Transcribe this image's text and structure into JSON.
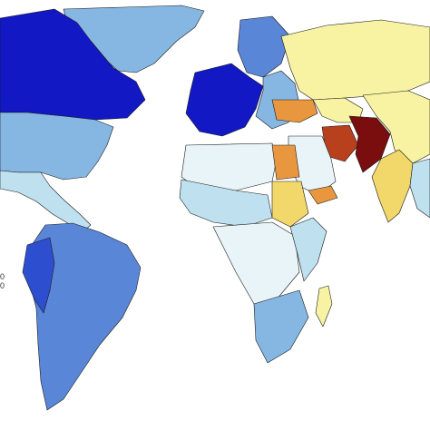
{
  "map": {
    "palette": {
      "very_low": "#e8f4f8",
      "low": "#bfe0ee",
      "low_mid": "#86b7e2",
      "mid_blue": "#5a86d8",
      "high_blue": "#2d4fcf",
      "very_high_blue": "#1218c4",
      "yellow_pale": "#f7f3a3",
      "yellow": "#f2d86a",
      "orange": "#e8973f",
      "red": "#b8401c",
      "dark_red": "#7a0d0d"
    },
    "regions": [
      {
        "name": "greenland",
        "class": "low_mid"
      },
      {
        "name": "canada",
        "class": "very_high_blue"
      },
      {
        "name": "usa",
        "class": "low_mid"
      },
      {
        "name": "mexico-central-america",
        "class": "low"
      },
      {
        "name": "south-america",
        "class": "mid_blue"
      },
      {
        "name": "peru-ecuador",
        "class": "high_blue"
      },
      {
        "name": "western-europe",
        "class": "very_high_blue"
      },
      {
        "name": "scandinavia",
        "class": "mid_blue"
      },
      {
        "name": "eastern-europe",
        "class": "low_mid"
      },
      {
        "name": "russia",
        "class": "yellow_pale"
      },
      {
        "name": "turkey-caucasus",
        "class": "orange"
      },
      {
        "name": "central-asia",
        "class": "yellow_pale"
      },
      {
        "name": "afghanistan-pakistan",
        "class": "dark_red"
      },
      {
        "name": "iran",
        "class": "red"
      },
      {
        "name": "china",
        "class": "yellow_pale"
      },
      {
        "name": "india",
        "class": "yellow"
      },
      {
        "name": "southeast-asia",
        "class": "low"
      },
      {
        "name": "north-africa",
        "class": "very_low"
      },
      {
        "name": "egypt",
        "class": "orange"
      },
      {
        "name": "sudan",
        "class": "yellow"
      },
      {
        "name": "middle-east",
        "class": "very_low"
      },
      {
        "name": "yemen",
        "class": "orange"
      },
      {
        "name": "west-africa",
        "class": "low"
      },
      {
        "name": "central-africa",
        "class": "very_low"
      },
      {
        "name": "east-africa",
        "class": "low"
      },
      {
        "name": "southern-africa",
        "class": "low_mid"
      },
      {
        "name": "madagascar",
        "class": "yellow_pale"
      }
    ]
  },
  "legend_clip": {
    "line1": "0",
    "line2": "0"
  }
}
